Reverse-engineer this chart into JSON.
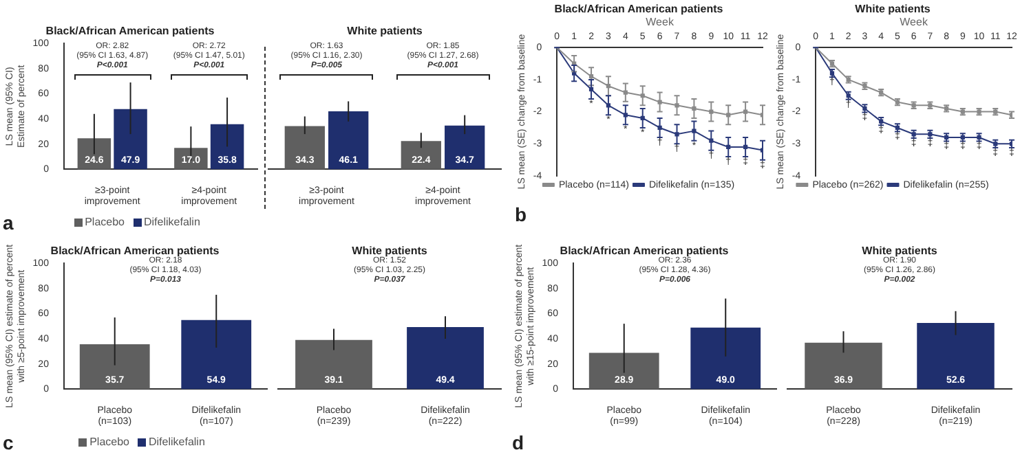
{
  "chart_data": [
    {
      "type": "bar",
      "title": "Black/African American patients",
      "ylabel": "LS mean (95% CI)\nEstimate of percent",
      "categories": [
        "≥3-point improvement",
        "≥4-point improvement"
      ],
      "series": [
        {
          "name": "Placebo",
          "color": "#5f5f5f",
          "values": [
            24.6,
            17.0
          ],
          "value_labels": [
            "24.6",
            "17.0"
          ],
          "errors": [
            [
              12,
              44
            ],
            [
              7,
              34
            ]
          ]
        },
        {
          "name": "Difelikefalin",
          "color": "#1f2f6e",
          "values": [
            47.9,
            35.8
          ],
          "value_labels": [
            "47.9",
            "35.8"
          ],
          "errors": [
            [
              28,
              69
            ],
            [
              18,
              57
            ]
          ]
        }
      ],
      "ylim": [
        0,
        100
      ],
      "yticks": [
        0,
        20,
        40,
        60,
        80,
        100
      ],
      "legend": "bottom",
      "annotations": [
        "OR: 2.82\n(95% CI 1.63, 4.87)\nP<0.001",
        "OR: 2.72\n(95% CI 1.47, 5.01)\nP<0.001",
        "a"
      ]
    },
    {
      "type": "bar",
      "title": "White patients",
      "categories": [
        "≥3-point improvement",
        "≥4-point improvement"
      ],
      "series": [
        {
          "color": "#5f5f5f",
          "values": [
            34.3,
            22.4
          ],
          "value_labels": [
            "34.3",
            "22.4"
          ],
          "errors": [
            [
              28,
              42
            ],
            [
              17,
              29
            ]
          ]
        },
        {
          "color": "#1f2f6e",
          "values": [
            46.1,
            34.7
          ],
          "value_labels": [
            "46.1",
            "34.7"
          ],
          "errors": [
            [
              38,
              54
            ],
            [
              28,
              43
            ]
          ]
        }
      ],
      "ylim": [
        0,
        100
      ],
      "yticks": [
        0,
        20,
        40,
        60,
        80,
        100
      ],
      "tick_labels": "x",
      "annotations": [
        "OR: 1.63\n(95% CI 1.16, 2.30)\nP=0.005",
        "OR: 1.85\n(95% CI 1.27, 2.68)\nP<0.001"
      ]
    },
    {
      "type": "line",
      "title": "Black/African American patients",
      "xlabel": "Week",
      "ylabel": "LS mean (SE) change from baseline",
      "xlim": [
        0,
        12
      ],
      "xticks": [
        0,
        1,
        2,
        3,
        4,
        5,
        6,
        7,
        8,
        9,
        10,
        11,
        12
      ],
      "ylim": [
        -4,
        0
      ],
      "yticks": [
        -4,
        -3,
        -2,
        -1,
        0
      ],
      "marker": "square",
      "legend": "bottom",
      "series": [
        {
          "name": "Placebo (n=114)",
          "color": "#8a8a8a",
          "x": [
            0,
            1,
            2,
            3,
            4,
            5,
            6,
            7,
            8,
            9,
            10,
            11,
            12
          ],
          "values": [
            0,
            -0.5,
            -0.9,
            -1.2,
            -1.4,
            -1.5,
            -1.7,
            -1.8,
            -1.9,
            -2.0,
            -2.1,
            -2.0,
            -2.1
          ],
          "errors": [
            0,
            0.25,
            0.28,
            0.3,
            0.28,
            0.3,
            0.3,
            0.3,
            0.3,
            0.3,
            0.3,
            0.3,
            0.3
          ]
        },
        {
          "name": "Difelikefalin (n=135)",
          "color": "#2b3a7a",
          "x": [
            0,
            1,
            2,
            3,
            4,
            5,
            6,
            7,
            8,
            9,
            10,
            11,
            12
          ],
          "values": [
            0,
            -0.8,
            -1.3,
            -1.8,
            -2.1,
            -2.2,
            -2.5,
            -2.7,
            -2.6,
            -2.9,
            -3.1,
            -3.1,
            -3.2
          ],
          "errors": [
            0,
            0.25,
            0.3,
            0.3,
            0.3,
            0.3,
            0.3,
            0.3,
            0.3,
            0.3,
            0.3,
            0.3,
            0.3
          ]
        }
      ],
      "annotations": [
        {
          "text": "*",
          "x": 2,
          "y": -1.75
        },
        {
          "text": "*",
          "x": 3,
          "y": -2.25
        },
        {
          "text": "*",
          "x": 4,
          "y": -2.55
        },
        {
          "text": "*",
          "x": 5,
          "y": -2.65
        },
        {
          "text": "†",
          "x": 6,
          "y": -2.95
        },
        {
          "text": "†",
          "x": 7,
          "y": -3.15
        },
        {
          "text": "*",
          "x": 8,
          "y": -3.05
        },
        {
          "text": "†",
          "x": 9,
          "y": -3.35
        },
        {
          "text": "†",
          "x": 10,
          "y": -3.55
        },
        {
          "text": "‡",
          "x": 11,
          "y": -3.55
        },
        {
          "text": "‡",
          "x": 12,
          "y": -3.65
        },
        "b"
      ]
    },
    {
      "type": "line",
      "title": "White patients",
      "xlabel": "Week",
      "ylabel": "LS mean (SE) change from baseline",
      "xlim": [
        0,
        12
      ],
      "xticks": [
        0,
        1,
        2,
        3,
        4,
        5,
        6,
        7,
        8,
        9,
        10,
        11,
        12
      ],
      "ylim": [
        -4,
        0
      ],
      "yticks": [
        -4,
        -3,
        -2,
        -1,
        0
      ],
      "marker": "square",
      "legend": "bottom",
      "series": [
        {
          "name": "Placebo (n=262)",
          "color": "#8a8a8a",
          "x": [
            0,
            1,
            2,
            3,
            4,
            5,
            6,
            7,
            8,
            9,
            10,
            11,
            12
          ],
          "values": [
            0,
            -0.5,
            -1.0,
            -1.2,
            -1.4,
            -1.7,
            -1.8,
            -1.8,
            -1.9,
            -2.0,
            -2.0,
            -2.0,
            -2.1
          ],
          "errors": [
            0,
            0.1,
            0.1,
            0.1,
            0.1,
            0.1,
            0.1,
            0.1,
            0.1,
            0.1,
            0.1,
            0.1,
            0.1
          ]
        },
        {
          "name": "Difelikefalin (n=255)",
          "color": "#2b3a7a",
          "x": [
            0,
            1,
            2,
            3,
            4,
            5,
            6,
            7,
            8,
            9,
            10,
            11,
            12
          ],
          "values": [
            0,
            -0.8,
            -1.5,
            -1.9,
            -2.3,
            -2.5,
            -2.7,
            -2.7,
            -2.8,
            -2.8,
            -2.8,
            -3.0,
            -3.0
          ],
          "errors": [
            0,
            0.12,
            0.12,
            0.12,
            0.12,
            0.12,
            0.12,
            0.12,
            0.12,
            0.12,
            0.12,
            0.12,
            0.12
          ]
        }
      ],
      "annotations": [
        {
          "text": "†",
          "x": 1,
          "y": -1.07
        },
        {
          "text": "†",
          "x": 2,
          "y": -1.77
        },
        {
          "text": "‡",
          "x": 3,
          "y": -2.17
        },
        {
          "text": "‡",
          "x": 4,
          "y": -2.57
        },
        {
          "text": "‡",
          "x": 5,
          "y": -2.77
        },
        {
          "text": "‡",
          "x": 6,
          "y": -2.97
        },
        {
          "text": "‡",
          "x": 7,
          "y": -2.97
        },
        {
          "text": "‡",
          "x": 8,
          "y": -3.07
        },
        {
          "text": "‡",
          "x": 9,
          "y": -3.07
        },
        {
          "text": "‡",
          "x": 10,
          "y": -3.07
        },
        {
          "text": "‡",
          "x": 11,
          "y": -3.27
        },
        {
          "text": "‡",
          "x": 12,
          "y": -3.27
        }
      ]
    },
    {
      "type": "bar",
      "title": "Black/African American patients",
      "ylabel": "LS mean (95% CI) estimate of percent\nwith ≥5-point improvement",
      "categories": [
        "Placebo (n=103)",
        "Difelikefalin (n=107)"
      ],
      "series": [
        {
          "name": "Placebo",
          "color": "#5f5f5f",
          "values": [
            35.7,
            null
          ],
          "value_labels": [
            "35.7",
            null
          ],
          "errors": [
            [
              19,
              57
            ],
            null
          ]
        },
        {
          "name": "Difelikefalin",
          "color": "#1f2f6e",
          "values": [
            null,
            54.9
          ],
          "value_labels": [
            null,
            "54.9"
          ],
          "errors": [
            null,
            [
              33,
              75
            ]
          ]
        }
      ],
      "ylim": [
        0,
        100
      ],
      "yticks": [
        0,
        20,
        40,
        60,
        80,
        100
      ],
      "legend": "bottom",
      "annotations": [
        "OR: 2.18\n(95% CI 1.18, 4.03)\nP=0.013",
        "c"
      ]
    },
    {
      "type": "bar",
      "title": "White patients",
      "categories": [
        "Placebo (n=239)",
        "Difelikefalin (n=222)"
      ],
      "series": [
        {
          "color": "#5f5f5f",
          "values": [
            39.1,
            null
          ],
          "value_labels": [
            "39.1",
            null
          ],
          "errors": [
            [
              31,
              48
            ],
            null
          ]
        },
        {
          "color": "#1f2f6e",
          "values": [
            null,
            49.4
          ],
          "value_labels": [
            null,
            "49.4"
          ],
          "errors": [
            null,
            [
              40,
              58
            ]
          ]
        }
      ],
      "ylim": [
        0,
        100
      ],
      "yticks": [
        0,
        20,
        40,
        60,
        80,
        100
      ],
      "tick_labels": "x",
      "annotations": [
        "OR: 1.52\n(95% CI 1.03, 2.25)\nP=0.037"
      ]
    },
    {
      "type": "bar",
      "title": "Black/African American patients",
      "ylabel": "LS mean (95% CI) estimate of percent\nwith ≥15-point improvement",
      "categories": [
        "Placebo (n=99)",
        "Difelikefalin (n=104)"
      ],
      "series": [
        {
          "color": "#5f5f5f",
          "values": [
            28.9,
            null
          ],
          "value_labels": [
            "28.9",
            null
          ],
          "errors": [
            [
              13,
              52
            ],
            null
          ]
        },
        {
          "color": "#1f2f6e",
          "values": [
            null,
            49.0
          ],
          "value_labels": [
            null,
            "49.0"
          ],
          "errors": [
            null,
            [
              26,
              72
            ]
          ]
        }
      ],
      "ylim": [
        0,
        100
      ],
      "yticks": [
        0,
        20,
        40,
        60,
        80,
        100
      ],
      "annotations": [
        "OR: 2.36\n(95% CI 1.28, 4.36)\nP=0.006",
        "d"
      ]
    },
    {
      "type": "bar",
      "title": "White patients",
      "categories": [
        "Placebo (n=228)",
        "Difelikefalin (n=219)"
      ],
      "series": [
        {
          "color": "#5f5f5f",
          "values": [
            36.9,
            null
          ],
          "value_labels": [
            "36.9",
            null
          ],
          "errors": [
            [
              29,
              46
            ],
            null
          ]
        },
        {
          "color": "#1f2f6e",
          "values": [
            null,
            52.6
          ],
          "value_labels": [
            null,
            "52.6"
          ],
          "errors": [
            null,
            [
              43,
              62
            ]
          ]
        }
      ],
      "ylim": [
        0,
        100
      ],
      "yticks": [
        0,
        20,
        40,
        60,
        80,
        100
      ],
      "tick_labels": "x",
      "annotations": [
        "OR: 1.90\n(95% CI 1.26, 2.86)\nP=0.002"
      ]
    }
  ]
}
